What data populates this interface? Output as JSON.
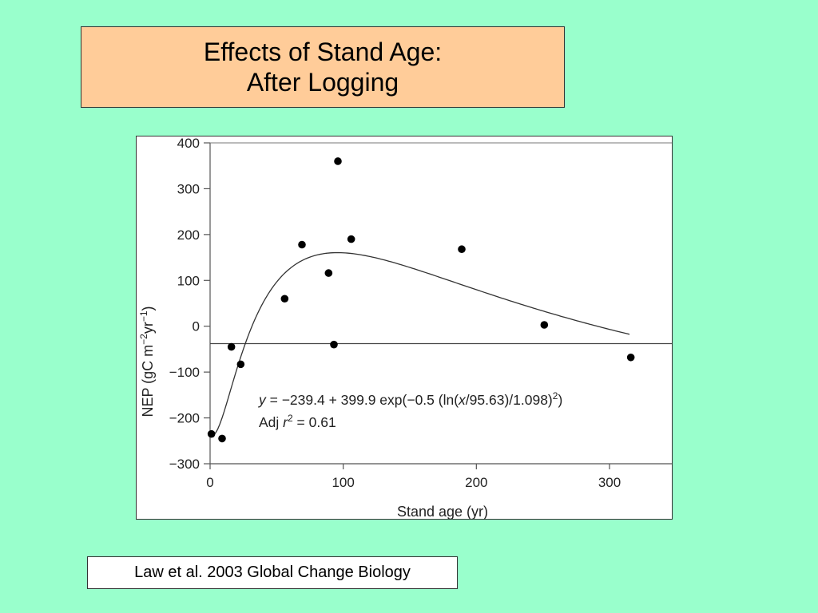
{
  "slide": {
    "title_line1": "Effects of Stand Age:",
    "title_line2": "After Logging",
    "citation": "Law et al. 2003 Global Change Biology",
    "colors": {
      "background": "#99ffcc",
      "title_box": "#ffcc99",
      "chart_bg": "#ffffff"
    }
  },
  "chart_data": {
    "type": "scatter",
    "xlabel": "Stand age (yr)",
    "ylabel_prefix": "NEP (gC m",
    "ylabel_sup1": "−2",
    "ylabel_mid": "yr",
    "ylabel_sup2": "−1",
    "ylabel_suffix": ")",
    "xlim": [
      0,
      350
    ],
    "ylim": [
      -300,
      400
    ],
    "xticks": [
      0,
      100,
      200,
      300
    ],
    "yticks": [
      -300,
      -200,
      -100,
      0,
      100,
      200,
      300,
      400
    ],
    "reference_line_y": -38,
    "points": [
      {
        "x": 1,
        "y": -235
      },
      {
        "x": 9,
        "y": -245
      },
      {
        "x": 16,
        "y": -45
      },
      {
        "x": 23,
        "y": -83
      },
      {
        "x": 56,
        "y": 60
      },
      {
        "x": 69,
        "y": 178
      },
      {
        "x": 89,
        "y": 116
      },
      {
        "x": 93,
        "y": -40
      },
      {
        "x": 96,
        "y": 360
      },
      {
        "x": 106,
        "y": 190
      },
      {
        "x": 189,
        "y": 168
      },
      {
        "x": 251,
        "y": 3
      },
      {
        "x": 316,
        "y": -68
      }
    ],
    "fit": {
      "a": -239.4,
      "b": 399.9,
      "x0": 95.63,
      "w": 1.098,
      "x_start": 1,
      "x_end": 315
    },
    "equation_y": "y",
    "equation_rest": " = −239.4 + 399.9 exp(−0.5 (ln(",
    "equation_x": "x",
    "equation_tail": "/95.63)/1.098)",
    "equation_sup": "2",
    "equation_close": ")",
    "adj_prefix": "Adj ",
    "adj_r": "r",
    "adj_sup": "2",
    "adj_value": " = 0.61"
  }
}
